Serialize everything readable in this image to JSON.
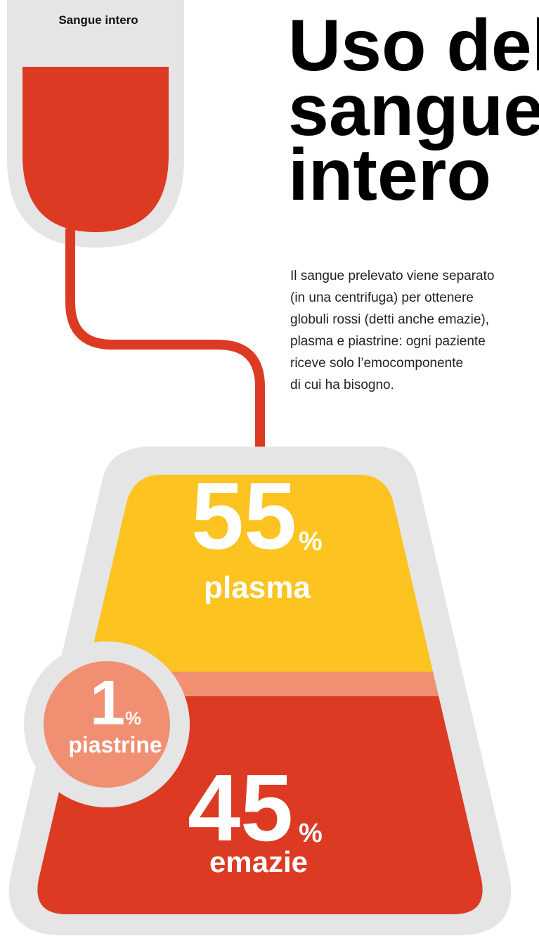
{
  "label": "Sangue intero",
  "title": [
    "Uso del",
    "sangue",
    "intero"
  ],
  "paragraph": [
    "Il sangue prelevato viene separato",
    "(in una centrifuga) per ottenere",
    "globuli rossi (detti anche emazie),",
    "plasma e piastrine: ogni paziente",
    "riceve solo l’emocomponente",
    "di cui ha bisogno."
  ],
  "components": [
    {
      "value": "55",
      "unit": "%",
      "name": "plasma"
    },
    {
      "value": "1",
      "unit": "%",
      "name": "piastrine"
    },
    {
      "value": "45",
      "unit": "%",
      "name": "emazie"
    }
  ]
}
